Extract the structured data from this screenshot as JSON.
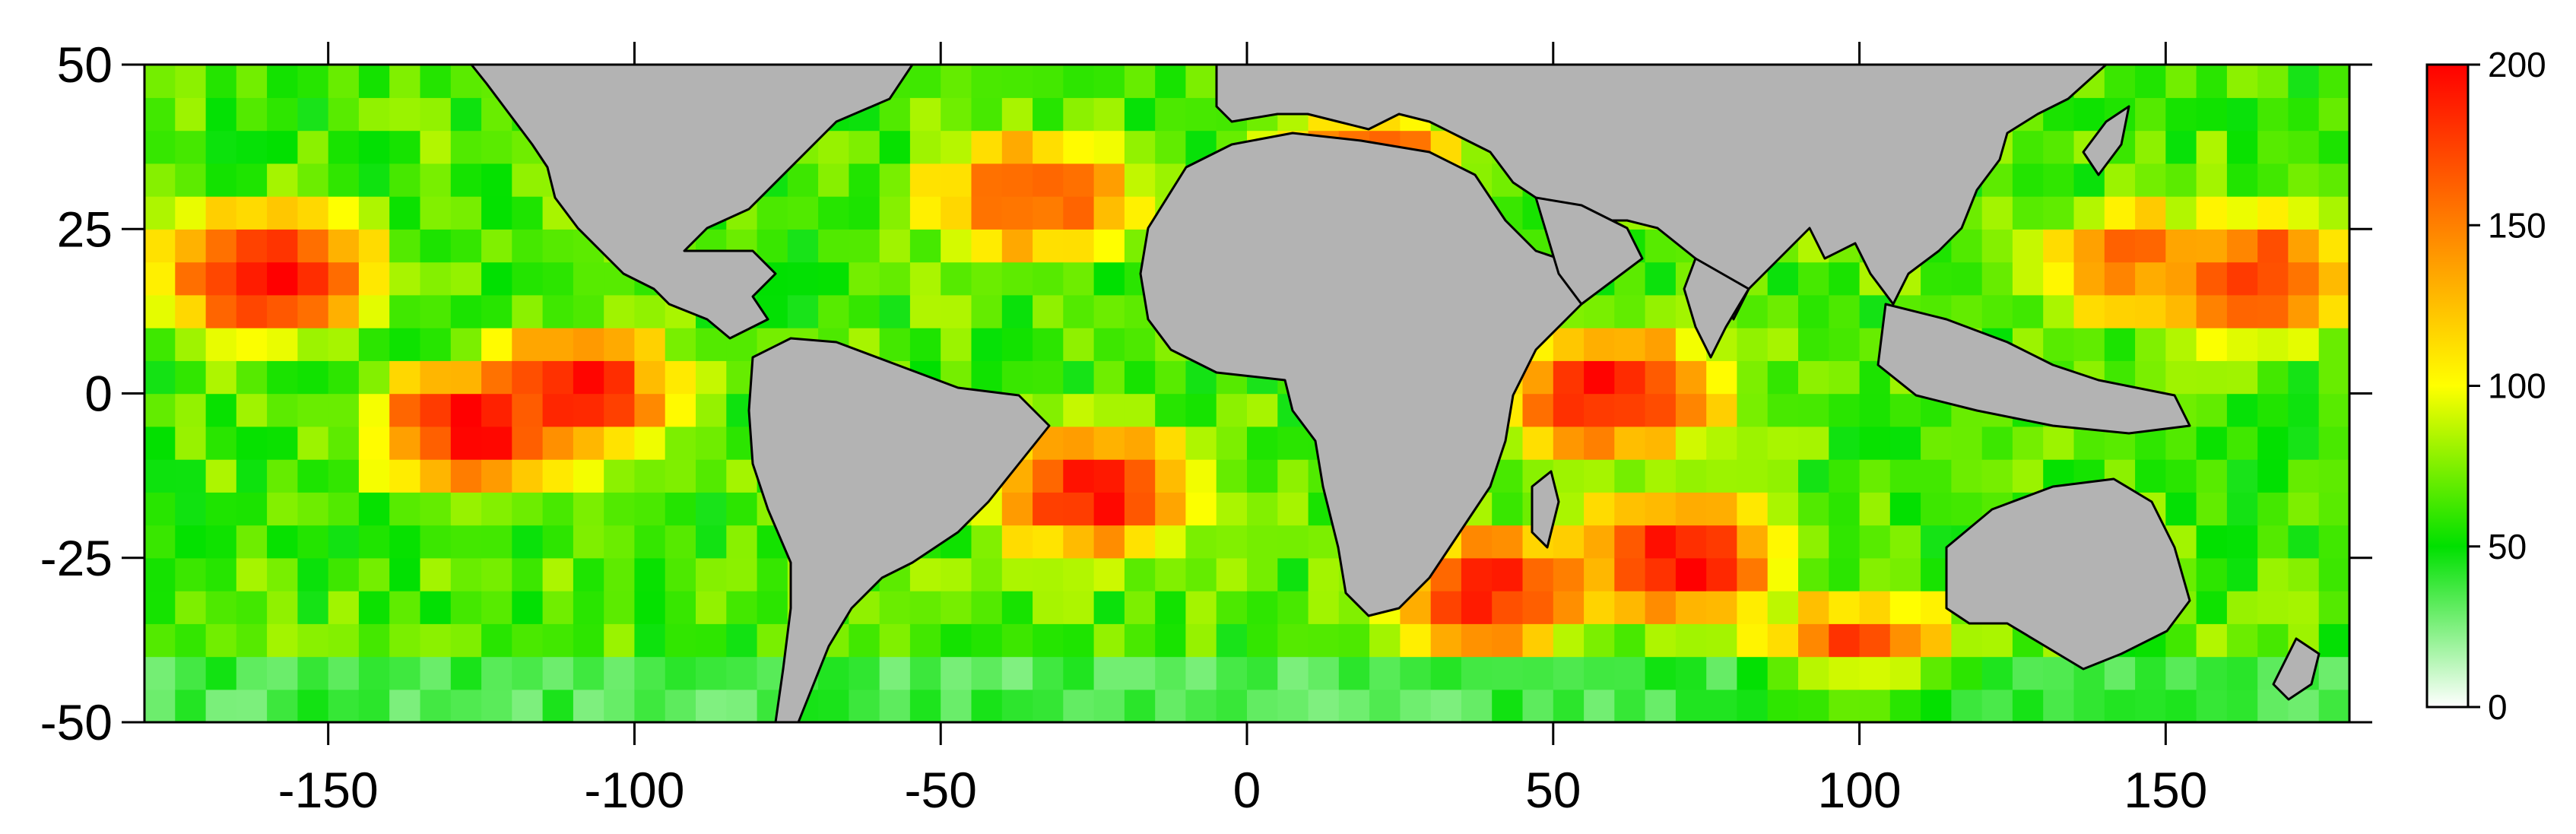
{
  "map": {
    "x_ticks": [
      {
        "value": -150,
        "label": "-150"
      },
      {
        "value": -100,
        "label": "-100"
      },
      {
        "value": -50,
        "label": "-50"
      },
      {
        "value": 0,
        "label": "0"
      },
      {
        "value": 50,
        "label": "50"
      },
      {
        "value": 100,
        "label": "100"
      },
      {
        "value": 150,
        "label": "150"
      }
    ],
    "y_ticks": [
      {
        "value": 50,
        "label": "50"
      },
      {
        "value": 25,
        "label": "25"
      },
      {
        "value": 0,
        "label": "0"
      },
      {
        "value": -25,
        "label": "-25"
      },
      {
        "value": -50,
        "label": "-50"
      }
    ],
    "lon_range": [
      -180,
      180
    ],
    "lat_range": [
      -50,
      50
    ],
    "land_color": "#b3b3b3",
    "coastline_color": "#000000"
  },
  "colorbar": {
    "ticks": [
      {
        "value": 200,
        "label": "200"
      },
      {
        "value": 150,
        "label": "150"
      },
      {
        "value": 100,
        "label": "100"
      },
      {
        "value": 50,
        "label": "50"
      },
      {
        "value": 0,
        "label": "0"
      }
    ],
    "range": [
      0,
      200
    ],
    "colors": [
      "#ffffff",
      "#00e000",
      "#ffff00",
      "#ff8000",
      "#ff0000"
    ]
  },
  "chart_data": {
    "type": "heatmap",
    "x_range": [
      -180,
      180
    ],
    "y_range": [
      -50,
      50
    ],
    "value_range": [
      0,
      200
    ],
    "hotspots": [
      {
        "lon": -160,
        "lat": 18,
        "value": 190
      },
      {
        "lon": -125,
        "lat": -5,
        "value": 190
      },
      {
        "lon": -110,
        "lat": 0,
        "value": 180
      },
      {
        "lon": -35,
        "lat": 30,
        "value": 160
      },
      {
        "lon": -25,
        "lat": -15,
        "value": 180
      },
      {
        "lon": 20,
        "lat": 35,
        "value": 150
      },
      {
        "lon": 60,
        "lat": 0,
        "value": 185
      },
      {
        "lon": 70,
        "lat": -25,
        "value": 185
      },
      {
        "lon": 40,
        "lat": -30,
        "value": 175
      },
      {
        "lon": 165,
        "lat": 18,
        "value": 170
      },
      {
        "lon": 145,
        "lat": 20,
        "value": 140
      },
      {
        "lon": 100,
        "lat": -40,
        "value": 160
      }
    ]
  }
}
